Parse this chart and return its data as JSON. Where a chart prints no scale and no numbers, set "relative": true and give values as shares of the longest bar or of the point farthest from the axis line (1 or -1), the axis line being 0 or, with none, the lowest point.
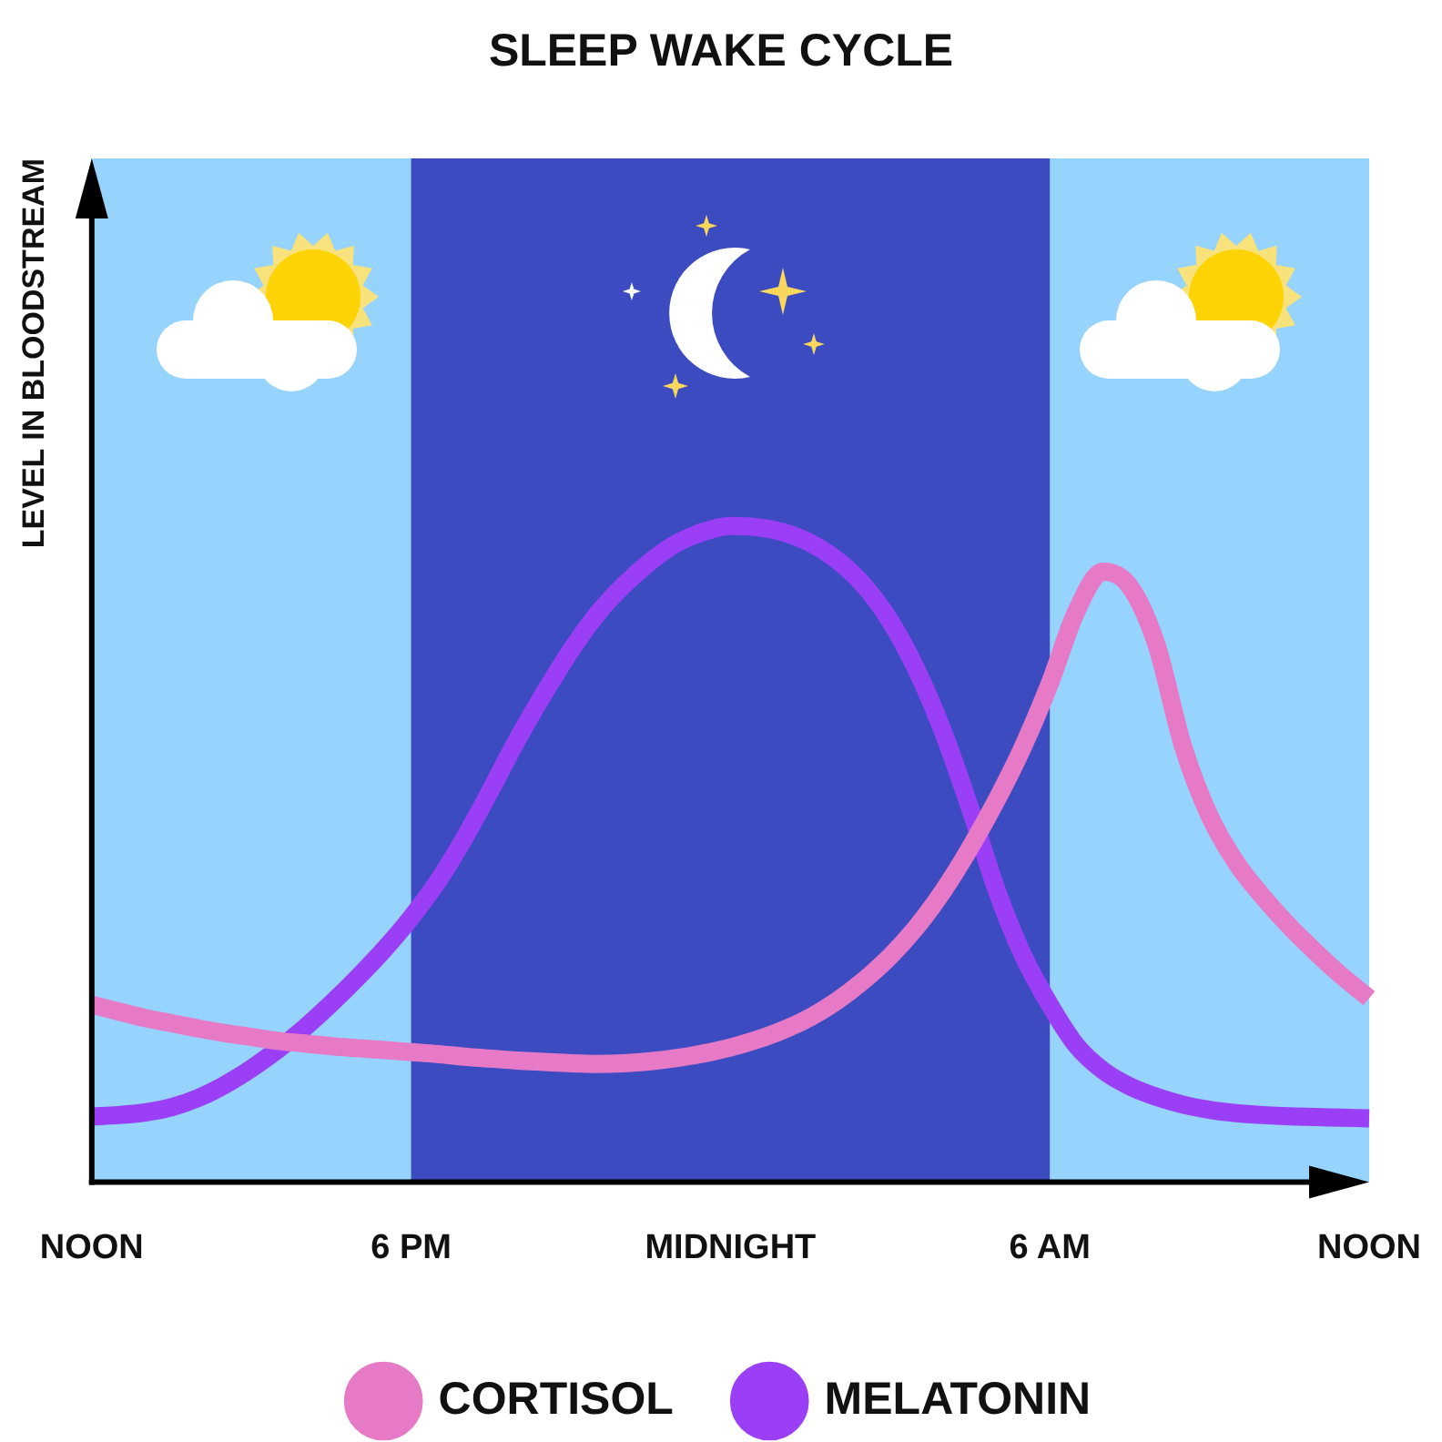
{
  "chart_data": {
    "type": "line",
    "title": "SLEEP WAKE CYCLE",
    "ylabel": "LEVEL IN BLOODSTREAM",
    "relative": true,
    "tick_labels": "x",
    "categories": [
      "NOON",
      null,
      null,
      null,
      null,
      null,
      null,
      null,
      null,
      null,
      null,
      null,
      "6 PM",
      null,
      null,
      null,
      null,
      null,
      null,
      null,
      null,
      null,
      null,
      null,
      "MIDNIGHT",
      null,
      null,
      null,
      null,
      null,
      null,
      null,
      null,
      null,
      null,
      null,
      "6 AM",
      null,
      null,
      null,
      null,
      null,
      null,
      null,
      null,
      null,
      null,
      null,
      "NOON"
    ],
    "series": [
      {
        "name": "CORTISOL",
        "color": "#e77ac6",
        "values": [
          0.27,
          0.26,
          0.25,
          0.242,
          0.234,
          0.227,
          0.221,
          0.215,
          0.211,
          0.207,
          0.204,
          0.201,
          0.198,
          0.195,
          0.191,
          0.188,
          0.185,
          0.183,
          0.181,
          0.18,
          0.181,
          0.184,
          0.189,
          0.196,
          0.205,
          0.217,
          0.232,
          0.251,
          0.276,
          0.307,
          0.344,
          0.389,
          0.444,
          0.509,
          0.582,
          0.664,
          0.76,
          0.87,
          0.93,
          0.908,
          0.82,
          0.665,
          0.558,
          0.487,
          0.435,
          0.39,
          0.35,
          0.313,
          0.28
        ]
      },
      {
        "name": "MELATONIN",
        "color": "#9b3ff7",
        "values": [
          0.1,
          0.102,
          0.106,
          0.114,
          0.128,
          0.148,
          0.173,
          0.202,
          0.235,
          0.272,
          0.312,
          0.355,
          0.403,
          0.458,
          0.524,
          0.598,
          0.675,
          0.745,
          0.81,
          0.866,
          0.91,
          0.946,
          0.974,
          0.991,
          1,
          0.998,
          0.99,
          0.974,
          0.948,
          0.91,
          0.855,
          0.78,
          0.685,
          0.57,
          0.445,
          0.345,
          0.27,
          0.208,
          0.17,
          0.146,
          0.13,
          0.118,
          0.11,
          0.105,
          0.102,
          0.1,
          0.099,
          0.098,
          0.097
        ]
      }
    ],
    "bands": [
      {
        "axis": "x",
        "from": "6 PM",
        "to": "6 AM",
        "color": "#3c4bc0"
      }
    ],
    "legend": "bottom",
    "grid": false,
    "marker": "none",
    "line_style": "solid"
  }
}
